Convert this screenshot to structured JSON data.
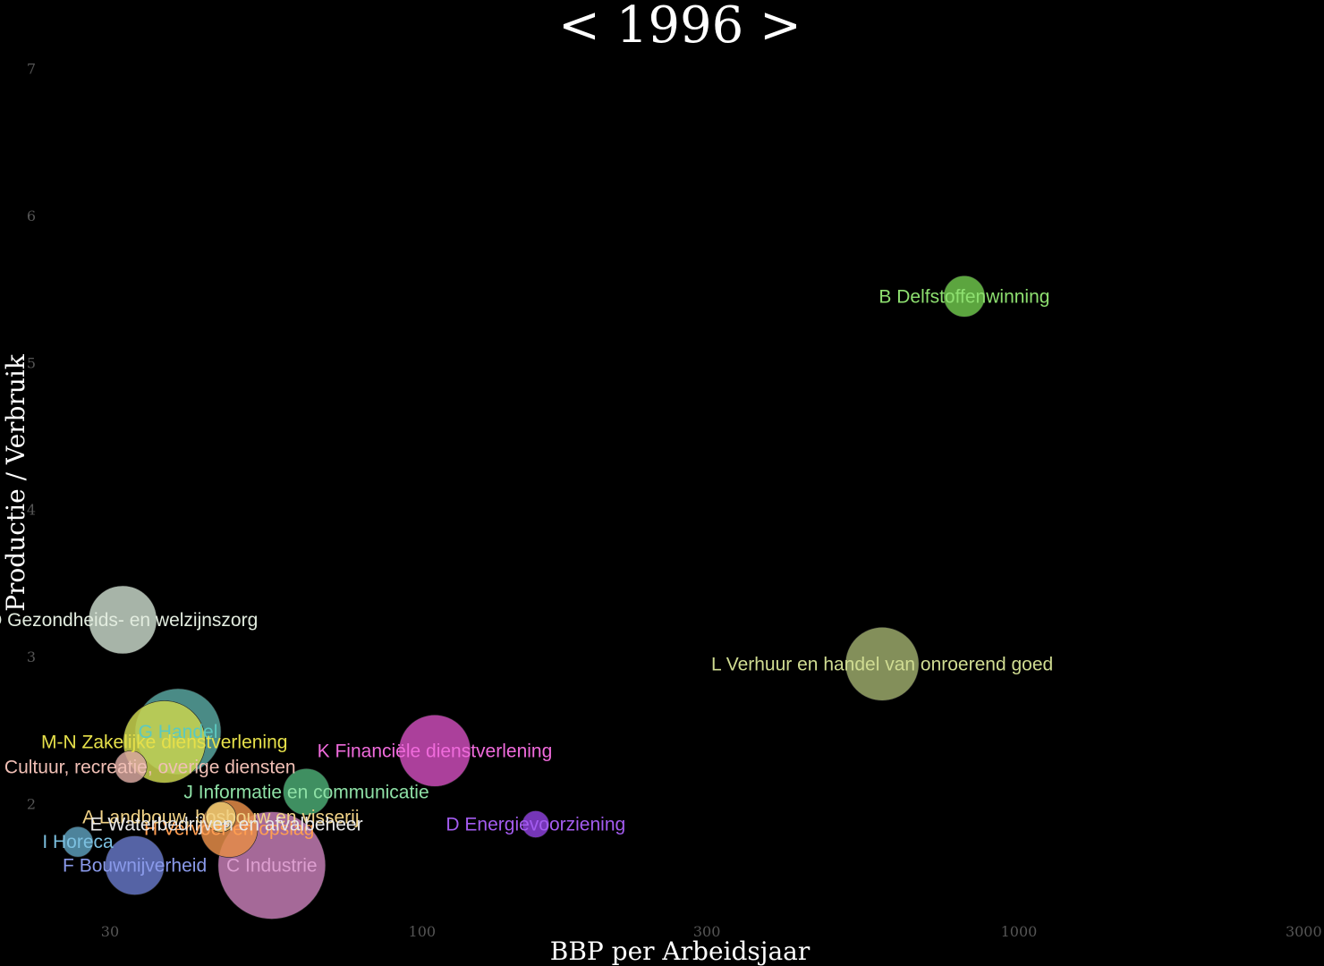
{
  "chart_data": {
    "type": "scatter",
    "title": "< 1996 >",
    "xlabel": "BBP per Arbeidsjaar",
    "ylabel": "Productie / Verbruik",
    "x_scale": "log",
    "xlim": [
      23,
      3200
    ],
    "ylim": [
      1.2,
      7.1
    ],
    "x_ticks": [
      30,
      100,
      300,
      1000,
      3000
    ],
    "x_tick_labels": [
      "30",
      "100",
      "300",
      "1000",
      "3000"
    ],
    "y_ticks": [
      2,
      3,
      4,
      5,
      6,
      7
    ],
    "y_tick_labels": [
      "2",
      "3",
      "4",
      "5",
      "6",
      "7"
    ],
    "grid": false,
    "legend": "none",
    "points": [
      {
        "label": "C Industrie",
        "x": 56,
        "y": 1.58,
        "size": 60,
        "color": "#c27bb3",
        "label_color": "#dd9fd0"
      },
      {
        "label": "G Handel",
        "x": 39,
        "y": 2.49,
        "size": 48,
        "color": "#57a39e",
        "label_color": "#5cc9c0"
      },
      {
        "label": "M-N Zakelijke dienstverlening",
        "x": 37,
        "y": 2.42,
        "size": 46,
        "color": "#c9d44f",
        "label_color": "#e6e04a"
      },
      {
        "label": "L Verhuur en handel van onroerend goed",
        "x": 590,
        "y": 2.95,
        "size": 41,
        "color": "#9aa86a",
        "label_color": "#d0dc92"
      },
      {
        "label": "K Financiële dienstverlening",
        "x": 105,
        "y": 2.36,
        "size": 40,
        "color": "#c94bb6",
        "label_color": "#f06bdc"
      },
      {
        "label": "Q Gezondheids- en welzijnszorg",
        "x": 31.5,
        "y": 3.25,
        "size": 38,
        "color": "#c4d3c6",
        "label_color": "#e2ecdf"
      },
      {
        "label": "F Bouwnijverheid",
        "x": 33,
        "y": 1.58,
        "size": 33,
        "color": "#6474c2",
        "label_color": "#8a9aea"
      },
      {
        "label": "H Vervoer en opslag",
        "x": 47.5,
        "y": 1.83,
        "size": 32,
        "color": "#e48c48",
        "label_color": "#ff9e52"
      },
      {
        "label": "J Informatie en communicatie",
        "x": 64,
        "y": 2.08,
        "size": 26,
        "color": "#4aa872",
        "label_color": "#8ee0a6"
      },
      {
        "label": "B Delfstoffenwinning",
        "x": 810,
        "y": 5.45,
        "size": 23,
        "color": "#6cc24a",
        "label_color": "#8ee070"
      },
      {
        "label": "R-U Cultuur, recreatie, overige diensten",
        "x": 32.5,
        "y": 2.25,
        "size": 18,
        "color": "#d6a69e",
        "label_color": "#f0bfb5"
      },
      {
        "label": "A Landbouw, bosbouw en visserij",
        "x": 46,
        "y": 1.91,
        "size": 17,
        "color": "#e8c46f",
        "label_color": "#f2d387"
      },
      {
        "label": "I Horeca",
        "x": 26.5,
        "y": 1.74,
        "size": 17,
        "color": "#5a9ab6",
        "label_color": "#7cc0e0"
      },
      {
        "label": "D Energievoorziening",
        "x": 155,
        "y": 1.86,
        "size": 15,
        "color": "#8a3fd6",
        "label_color": "#a45cf0"
      },
      {
        "label": "E Waterbedrijven en afvalbeheer",
        "x": 47,
        "y": 1.86,
        "size": 4,
        "color": "#e0e0e0",
        "label_color": "#e8e8e8"
      }
    ]
  }
}
